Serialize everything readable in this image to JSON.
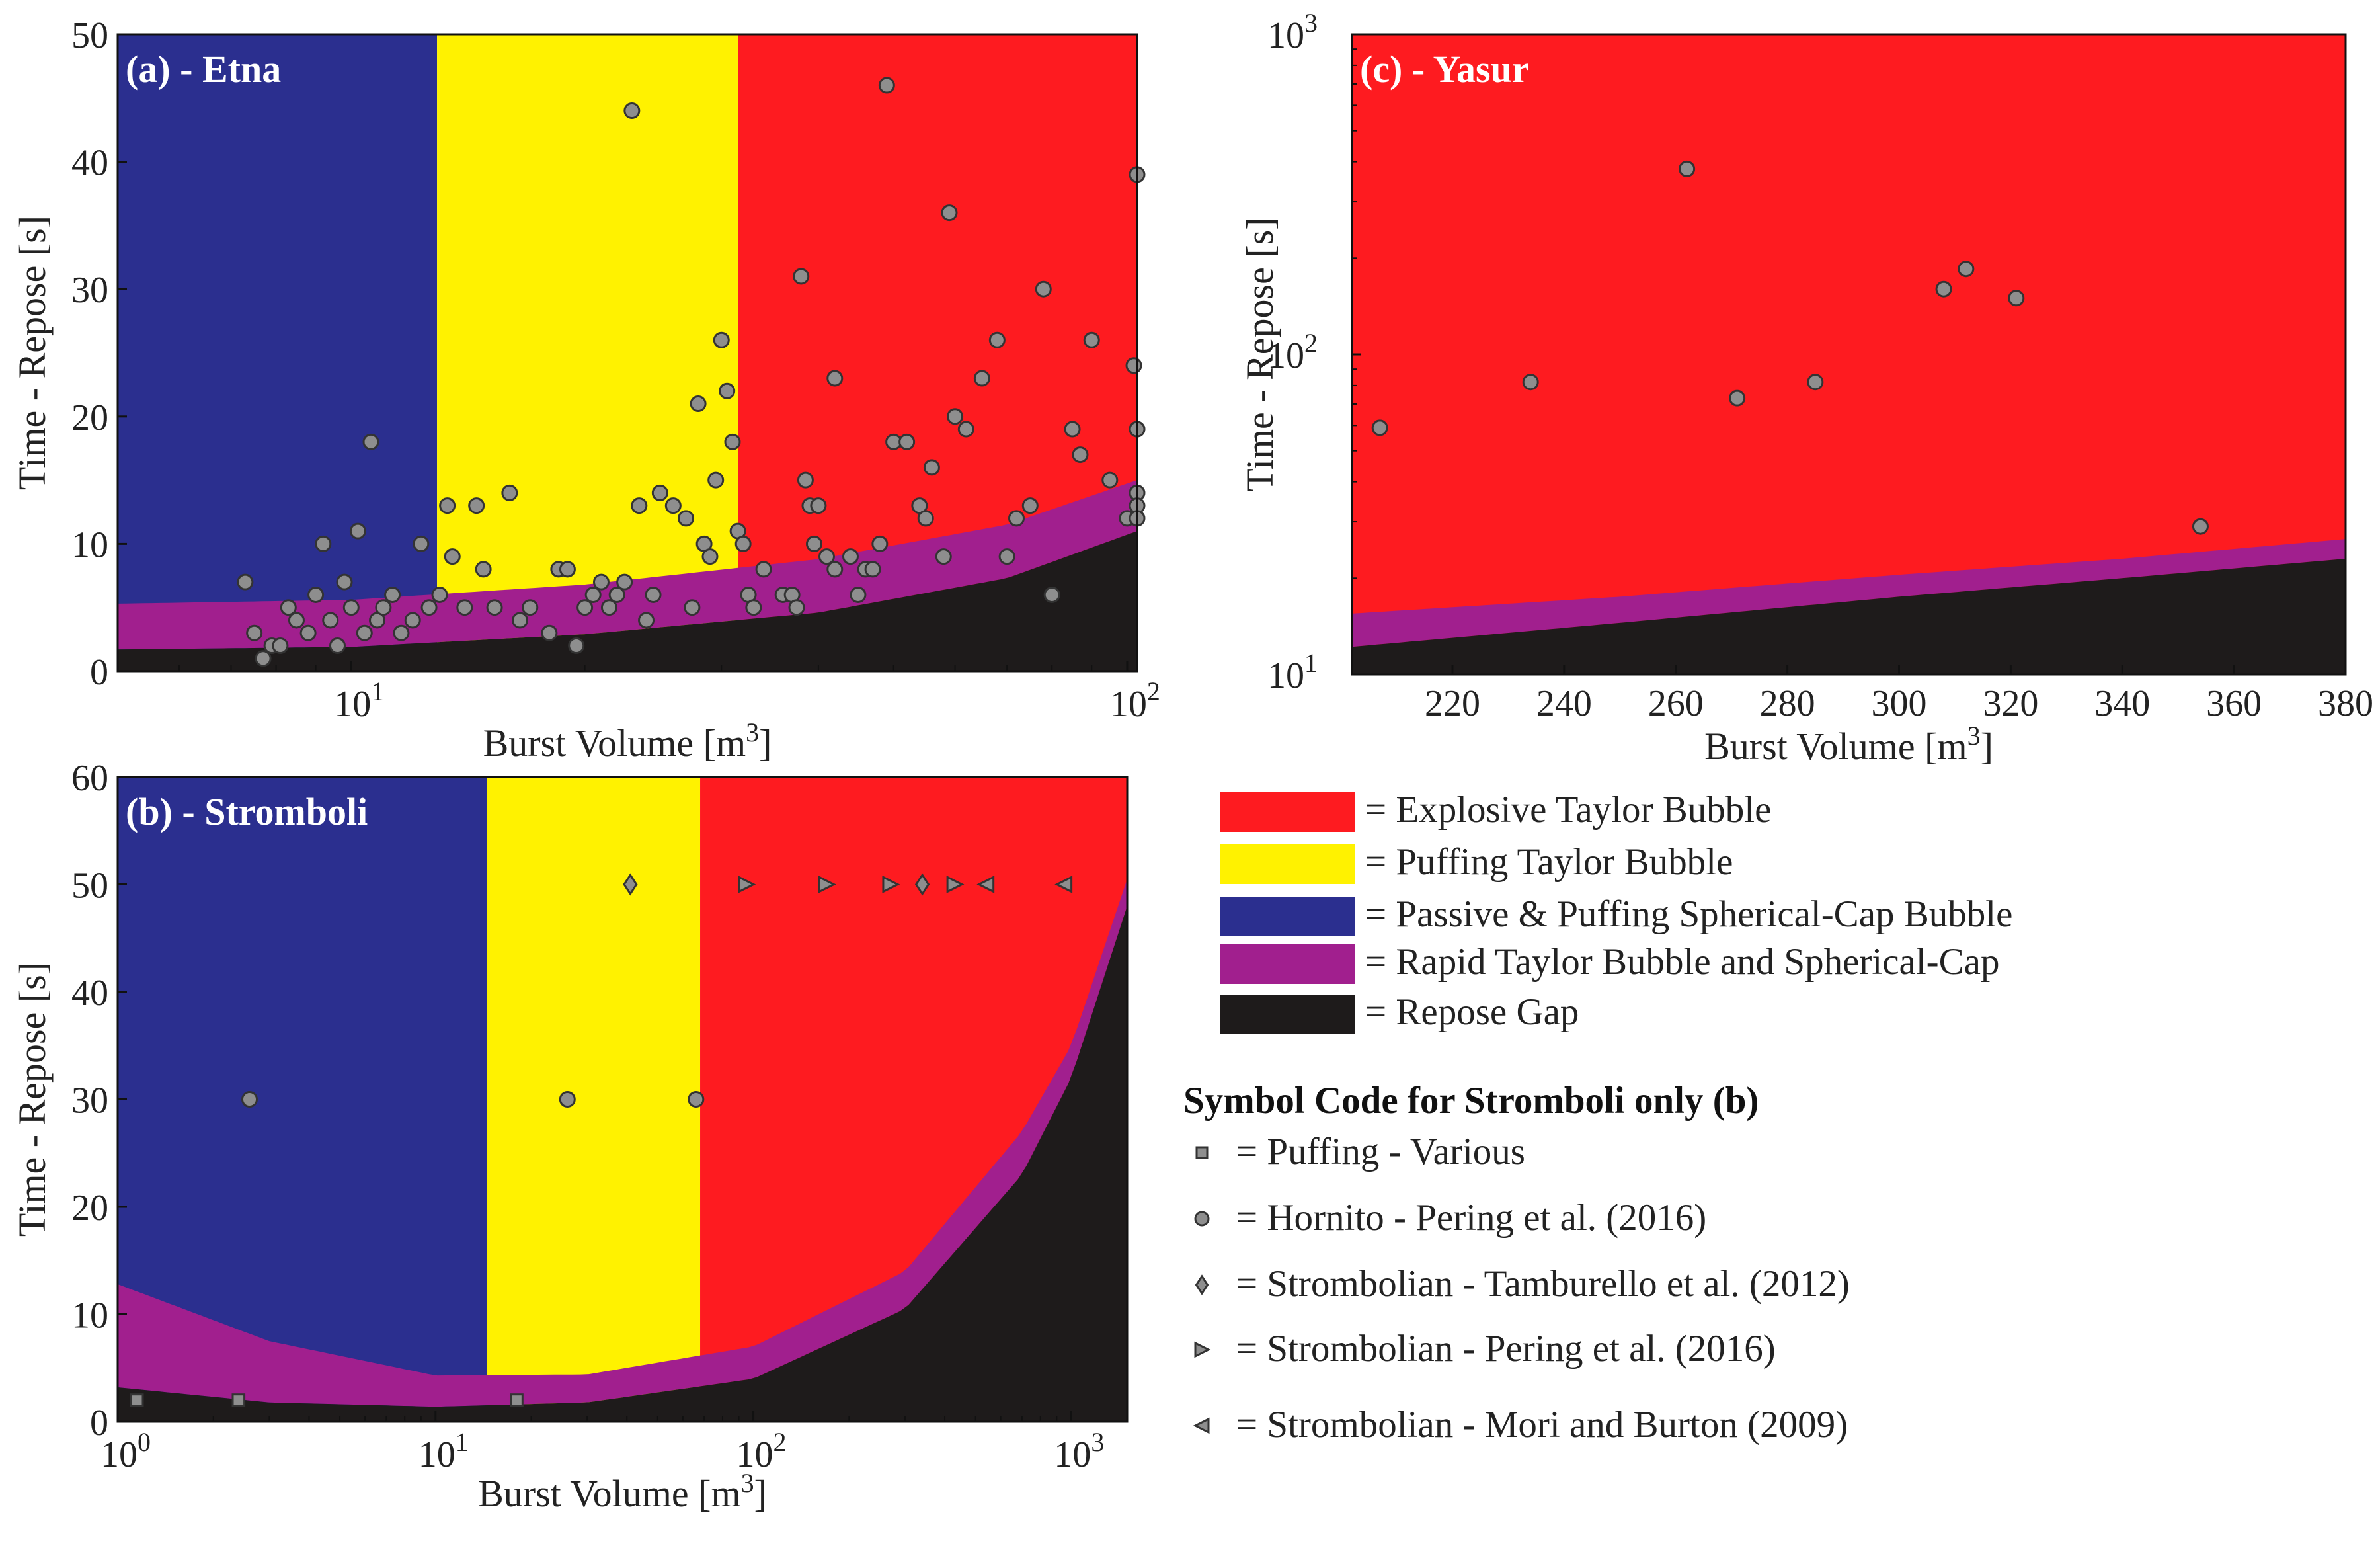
{
  "colors": {
    "explosive": "#fe1b20",
    "puffing_taylor": "#fff200",
    "passive_spherical": "#2b2f8f",
    "rapid": "#a11f8e",
    "repose_gap": "#1e1b1b",
    "marker_fill": "#8e8e8e",
    "marker_edge": "#333333"
  },
  "chart_data": [
    {
      "id": "a",
      "type": "scatter",
      "title": "(a) - Etna",
      "xlabel": "Burst Volume [m",
      "xlabel_sup": "3",
      "xlabel_end": "]",
      "ylabel": "Time - Repose [s]",
      "xscale": "log",
      "xlim": [
        5,
        103
      ],
      "ylim": [
        0,
        50
      ],
      "yticks": [
        "0",
        "10",
        "20",
        "30",
        "40",
        "50"
      ],
      "ytick_values": [
        0,
        10,
        20,
        30,
        40,
        50
      ],
      "xticks": [
        {
          "value": 10,
          "base": "10",
          "exp": "1"
        },
        {
          "value": 100,
          "base": "10",
          "exp": "2"
        }
      ],
      "regions": {
        "passive_spherical_x": [
          5,
          12.9
        ],
        "puffing_taylor_x": [
          12.9,
          31.5
        ],
        "explosive_x": [
          31.5,
          103
        ],
        "repose_gap_curve": [
          [
            5,
            1.7
          ],
          [
            10,
            1.9
          ],
          [
            20,
            2.9
          ],
          [
            40,
            4.6
          ],
          [
            70,
            7.3
          ],
          [
            103,
            11
          ]
        ],
        "rapid_upper_curve": [
          [
            5,
            5.3
          ],
          [
            10,
            5.6
          ],
          [
            20,
            6.8
          ],
          [
            40,
            8.8
          ],
          [
            70,
            11.5
          ],
          [
            103,
            15
          ]
        ]
      },
      "points": [
        [
          7.3,
          7
        ],
        [
          7.5,
          3
        ],
        [
          7.7,
          1
        ],
        [
          7.9,
          2
        ],
        [
          8.1,
          2
        ],
        [
          8.3,
          5
        ],
        [
          8.5,
          4
        ],
        [
          8.8,
          3
        ],
        [
          9,
          6
        ],
        [
          9.2,
          10
        ],
        [
          9.4,
          4
        ],
        [
          9.6,
          2
        ],
        [
          9.8,
          7
        ],
        [
          10,
          5
        ],
        [
          10.2,
          11
        ],
        [
          10.4,
          3
        ],
        [
          10.6,
          18
        ],
        [
          10.8,
          4
        ],
        [
          11,
          5
        ],
        [
          11.3,
          6
        ],
        [
          11.6,
          3
        ],
        [
          12,
          4
        ],
        [
          12.3,
          10
        ],
        [
          12.6,
          5
        ],
        [
          13,
          6
        ],
        [
          13.3,
          13
        ],
        [
          13.5,
          9
        ],
        [
          14,
          5
        ],
        [
          14.5,
          13
        ],
        [
          14.8,
          8
        ],
        [
          15.3,
          5
        ],
        [
          16,
          14
        ],
        [
          16.5,
          4
        ],
        [
          17,
          5
        ],
        [
          18,
          3
        ],
        [
          18.5,
          8
        ],
        [
          19,
          8
        ],
        [
          19.5,
          2
        ],
        [
          20,
          5
        ],
        [
          20.5,
          6
        ],
        [
          21,
          7
        ],
        [
          21.5,
          5
        ],
        [
          22,
          6
        ],
        [
          22.5,
          7
        ],
        [
          23,
          44
        ],
        [
          23.5,
          13
        ],
        [
          24,
          4
        ],
        [
          24.5,
          6
        ],
        [
          25,
          14
        ],
        [
          26,
          13
        ],
        [
          27,
          12
        ],
        [
          27.5,
          5
        ],
        [
          28,
          21
        ],
        [
          28.5,
          10
        ],
        [
          29,
          9
        ],
        [
          29.5,
          15
        ],
        [
          30,
          26
        ],
        [
          30.5,
          22
        ],
        [
          31,
          18
        ],
        [
          31.5,
          11
        ],
        [
          32,
          10
        ],
        [
          32.5,
          6
        ],
        [
          33,
          5
        ],
        [
          34,
          8
        ],
        [
          36,
          6
        ],
        [
          37,
          6
        ],
        [
          37.5,
          5
        ],
        [
          38,
          31
        ],
        [
          38.5,
          15
        ],
        [
          39,
          13
        ],
        [
          39.5,
          10
        ],
        [
          40,
          13
        ],
        [
          41,
          9
        ],
        [
          42,
          8
        ],
        [
          42,
          23
        ],
        [
          44,
          9
        ],
        [
          45,
          6
        ],
        [
          46,
          8
        ],
        [
          47,
          8
        ],
        [
          48,
          10
        ],
        [
          49,
          46
        ],
        [
          50,
          18
        ],
        [
          52,
          18
        ],
        [
          54,
          13
        ],
        [
          55,
          12
        ],
        [
          56,
          16
        ],
        [
          58,
          9
        ],
        [
          59,
          36
        ],
        [
          60,
          20
        ],
        [
          62,
          19
        ],
        [
          65,
          23
        ],
        [
          68,
          26
        ],
        [
          70,
          9
        ],
        [
          72,
          12
        ],
        [
          75,
          13
        ],
        [
          78,
          30
        ],
        [
          80,
          6
        ],
        [
          85,
          19
        ],
        [
          87,
          17
        ],
        [
          90,
          26
        ],
        [
          95,
          15
        ],
        [
          100,
          12
        ],
        [
          102,
          24
        ],
        [
          103,
          39
        ],
        [
          103,
          19
        ],
        [
          103,
          14
        ],
        [
          103,
          13
        ],
        [
          103,
          12
        ],
        [
          103,
          19
        ]
      ]
    },
    {
      "id": "b",
      "type": "scatter",
      "title": "(b) - Stromboli",
      "xlabel": "Burst Volume [m",
      "xlabel_sup": "3",
      "xlabel_end": "]",
      "ylabel": "Time - Repose [s]",
      "xscale": "log",
      "xlim": [
        1,
        1500
      ],
      "ylim": [
        0,
        60
      ],
      "yticks": [
        "0",
        "10",
        "20",
        "30",
        "40",
        "50",
        "60"
      ],
      "ytick_values": [
        0,
        10,
        20,
        30,
        40,
        50,
        60
      ],
      "xticks": [
        {
          "value": 1,
          "base": "10",
          "exp": "0"
        },
        {
          "value": 10,
          "base": "10",
          "exp": "1"
        },
        {
          "value": 100,
          "base": "10",
          "exp": "2"
        },
        {
          "value": 1000,
          "base": "10",
          "exp": "3"
        }
      ],
      "regions": {
        "passive_spherical_x": [
          1,
          14.5
        ],
        "puffing_taylor_x": [
          14.5,
          68
        ],
        "explosive_x": [
          68,
          1500
        ],
        "repose_gap_curve": [
          [
            1,
            3.2
          ],
          [
            3,
            1.8
          ],
          [
            10,
            1.4
          ],
          [
            30,
            1.8
          ],
          [
            100,
            4
          ],
          [
            300,
            10.5
          ],
          [
            700,
            23
          ],
          [
            1000,
            32
          ],
          [
            1500,
            48
          ]
        ],
        "rapid_upper_curve": [
          [
            1,
            12.8
          ],
          [
            3,
            7.5
          ],
          [
            10,
            4.3
          ],
          [
            30,
            4.4
          ],
          [
            100,
            7
          ],
          [
            300,
            14
          ],
          [
            700,
            27
          ],
          [
            1000,
            35
          ],
          [
            1500,
            50.5
          ]
        ]
      },
      "series": [
        {
          "name": "= Puffing - Various",
          "marker": "square",
          "points": [
            [
              1.15,
              2
            ],
            [
              2.4,
              2
            ],
            [
              18,
              2
            ]
          ]
        },
        {
          "name": "= Hornito - Pering et al. (2016)",
          "marker": "circle",
          "points": [
            [
              2.6,
              30
            ],
            [
              26,
              30
            ],
            [
              66,
              30
            ]
          ]
        },
        {
          "name": "= Strombolian - Tamburello et al. (2012)",
          "marker": "diamond",
          "points": [
            [
              41,
              50
            ],
            [
              340,
              50
            ]
          ]
        },
        {
          "name": "= Strombolian - Pering et al. (2016)",
          "marker": "triangle-right",
          "points": [
            [
              95,
              50
            ],
            [
              170,
              50
            ],
            [
              270,
              50
            ],
            [
              430,
              50
            ]
          ]
        },
        {
          "name": "= Strombolian - Mori and Burton (2009)",
          "marker": "triangle-left",
          "points": [
            [
              540,
              50
            ],
            [
              950,
              50
            ]
          ]
        }
      ]
    },
    {
      "id": "c",
      "type": "scatter",
      "title": "(c) - Yasur",
      "xlabel": "Burst Volume [m",
      "xlabel_sup": "3",
      "xlabel_end": "]",
      "ylabel": "Time - Repose [s]",
      "xscale": "linear",
      "yscale": "log",
      "xlim": [
        202,
        380
      ],
      "ylim": [
        10,
        1000
      ],
      "xticks": [
        "220",
        "240",
        "260",
        "280",
        "300",
        "320",
        "340",
        "360",
        "380"
      ],
      "xtick_values": [
        220,
        240,
        260,
        280,
        300,
        320,
        340,
        360,
        380
      ],
      "yticks": [
        {
          "value": 10,
          "base": "10",
          "exp": "1"
        },
        {
          "value": 100,
          "base": "10",
          "exp": "2"
        },
        {
          "value": 1000,
          "base": "10",
          "exp": "3"
        }
      ],
      "regions": {
        "explosive_x": [
          202,
          380
        ],
        "repose_gap_curve": [
          [
            202,
            12.2
          ],
          [
            250,
            14.5
          ],
          [
            300,
            17.5
          ],
          [
            340,
            20
          ],
          [
            380,
            23
          ]
        ],
        "rapid_upper_curve": [
          [
            202,
            15.5
          ],
          [
            250,
            17.5
          ],
          [
            300,
            20.5
          ],
          [
            340,
            23
          ],
          [
            380,
            26.5
          ]
        ]
      },
      "points": [
        [
          207,
          59
        ],
        [
          234,
          82
        ],
        [
          262,
          380
        ],
        [
          271,
          73
        ],
        [
          285,
          82
        ],
        [
          308,
          160
        ],
        [
          312,
          185
        ],
        [
          321,
          150
        ],
        [
          354,
          29
        ]
      ]
    }
  ],
  "legend": {
    "items": [
      {
        "key": "explosive",
        "label": "= Explosive Taylor Bubble"
      },
      {
        "key": "puffing_taylor",
        "label": "= Puffing Taylor Bubble"
      },
      {
        "key": "passive_spherical",
        "label": "= Passive & Puffing Spherical-Cap Bubble"
      },
      {
        "key": "rapid",
        "label": "= Rapid Taylor Bubble and Spherical-Cap"
      },
      {
        "key": "repose_gap",
        "label": "= Repose Gap"
      }
    ],
    "symbol_heading": "Symbol Code for Stromboli only (b)"
  }
}
